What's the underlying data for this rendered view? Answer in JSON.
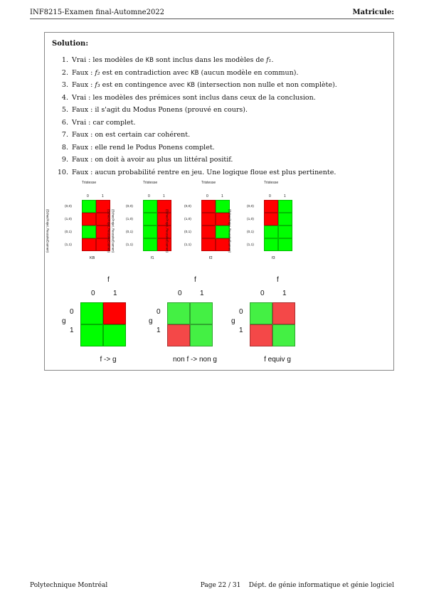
{
  "header": {
    "left": "INF8215-Examen final-Automne2022",
    "right": "Matricule:"
  },
  "solution": {
    "title": "Solution:",
    "items": [
      {
        "n": "1.",
        "pre": "Vrai : les modèles de ",
        "kb": "KB",
        "mid": " sont inclus dans les modèles de ",
        "math": "f₁",
        "post": "."
      },
      {
        "n": "2.",
        "pre": "Faux : ",
        "math": "f₂",
        "mid": " est en contradiction avec ",
        "kb": "KB",
        "post": " (aucun modèle en commun)."
      },
      {
        "n": "3.",
        "pre": "Faux : ",
        "math": "f₃",
        "mid": " est en contingence avec ",
        "kb": "KB",
        "post": " (intersection non nulle et non complète)."
      },
      {
        "n": "4.",
        "text": "Vrai : les modèles des prémices sont inclus dans ceux de la conclusion."
      },
      {
        "n": "5.",
        "text": "Faux : il s'agit du Modus Ponens (prouvé en cours)."
      },
      {
        "n": "6.",
        "text": "Vrai : car complet."
      },
      {
        "n": "7.",
        "text": "Faux : on est certain car cohérent."
      },
      {
        "n": "8.",
        "text": "Faux : elle rend le Podus Ponens complet."
      },
      {
        "n": "9.",
        "text": "Faux : on doit à avoir au plus un littéral positif."
      },
      {
        "n": "10.",
        "text": "Faux : aucun probabilité rentre en jeu. Une logique floue est plus pertinente."
      }
    ]
  },
  "figure_top": {
    "title": "Tristesse",
    "col_labels": [
      "0",
      "1"
    ],
    "row_axis_label": "(EchecProjet, ReussiteExamen)",
    "row_labels": [
      "(0,0)",
      "(1,0)",
      "(0,1)",
      "(1,1)"
    ],
    "maps": [
      {
        "name": "KB",
        "cells": [
          [
            "green",
            "red"
          ],
          [
            "red",
            "red"
          ],
          [
            "green",
            "red"
          ],
          [
            "red",
            "red"
          ]
        ]
      },
      {
        "name": "f1",
        "cells": [
          [
            "green",
            "red"
          ],
          [
            "green",
            "red"
          ],
          [
            "green",
            "red"
          ],
          [
            "green",
            "red"
          ]
        ]
      },
      {
        "name": "f2",
        "cells": [
          [
            "red",
            "green"
          ],
          [
            "red",
            "red"
          ],
          [
            "red",
            "green"
          ],
          [
            "red",
            "red"
          ]
        ]
      },
      {
        "name": "f3",
        "cells": [
          [
            "red",
            "green"
          ],
          [
            "red",
            "green"
          ],
          [
            "green",
            "green"
          ],
          [
            "green",
            "green"
          ]
        ]
      }
    ]
  },
  "figure_bottom": {
    "col_axis": "f",
    "row_axis": "g",
    "col_labels": [
      "0",
      "1"
    ],
    "row_labels": [
      "0",
      "1"
    ],
    "maps": [
      {
        "name": "f -> g",
        "cells": [
          [
            "green",
            "red"
          ],
          [
            "green",
            "green"
          ]
        ]
      },
      {
        "name": "non f -> non g",
        "cells": [
          [
            "lightgreen",
            "lightgreen"
          ],
          [
            "lightred",
            "lightgreen"
          ]
        ]
      },
      {
        "name": "f equiv g",
        "cells": [
          [
            "lightgreen",
            "lightred"
          ],
          [
            "lightred",
            "lightgreen"
          ]
        ]
      }
    ]
  },
  "colors": {
    "green": "#00ff00",
    "red": "#ff0000",
    "lightgreen": "#44f044",
    "lightred": "#f44848"
  },
  "footer": {
    "left": "Polytechnique Montréal",
    "page": "Page 22 / 31",
    "right": "Dépt. de génie informatique et génie logiciel"
  }
}
